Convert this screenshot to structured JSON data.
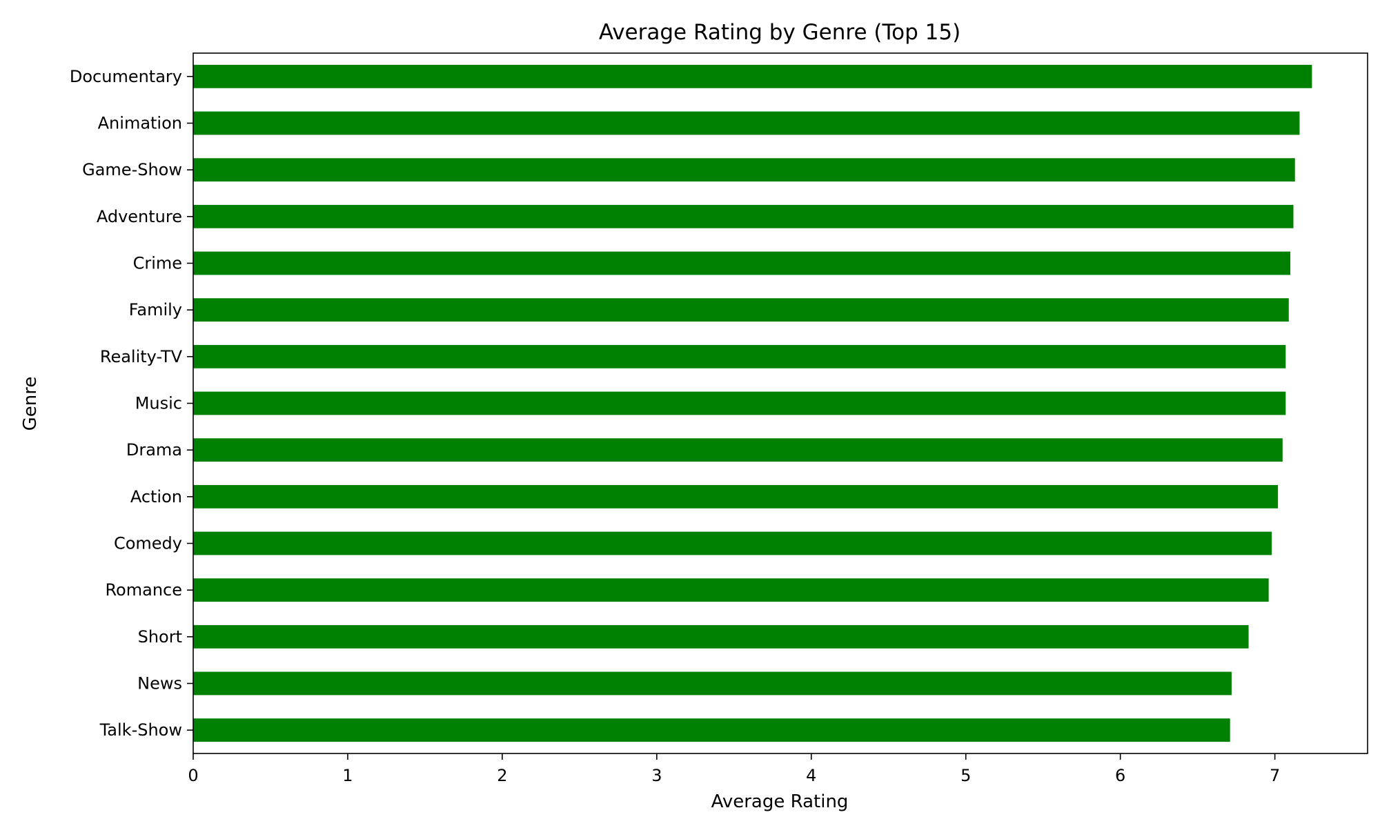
{
  "chart_data": {
    "type": "bar",
    "orientation": "horizontal",
    "title": "Average Rating by Genre (Top 15)",
    "xlabel": "Average Rating",
    "ylabel": "Genre",
    "categories": [
      "Documentary",
      "Animation",
      "Game-Show",
      "Adventure",
      "Crime",
      "Family",
      "Reality-TV",
      "Music",
      "Drama",
      "Action",
      "Comedy",
      "Romance",
      "Short",
      "News",
      "Talk-Show"
    ],
    "values": [
      7.24,
      7.16,
      7.13,
      7.12,
      7.1,
      7.09,
      7.07,
      7.07,
      7.05,
      7.02,
      6.98,
      6.96,
      6.83,
      6.72,
      6.71
    ],
    "xlim": [
      0,
      7.6
    ],
    "xticks": [
      0,
      1,
      2,
      3,
      4,
      5,
      6,
      7
    ],
    "grid": false,
    "legend": "none",
    "bar_color": "#008000"
  }
}
